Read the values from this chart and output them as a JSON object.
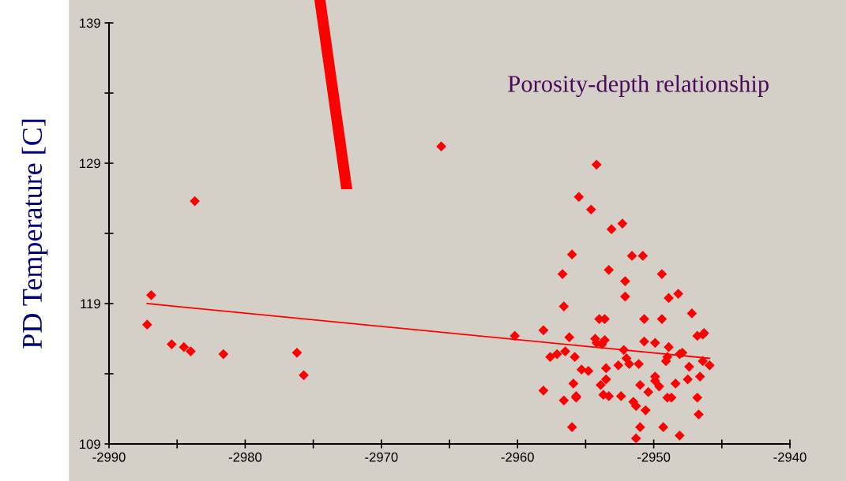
{
  "chart_data": {
    "type": "scatter",
    "ylabel": "PD Temperature [C]",
    "annotations": [
      "Porosity-depth relationship"
    ],
    "xlim": [
      -2990,
      -2940
    ],
    "ylim": [
      109,
      139
    ],
    "xticks": [
      -2990,
      {
        "value": -2985,
        "label": null
      },
      -2980,
      {
        "value": -2975,
        "label": null
      },
      -2970,
      {
        "value": -2965,
        "label": null
      },
      -2960,
      {
        "value": -2955,
        "label": null
      },
      -2950,
      {
        "value": -2945,
        "label": null
      },
      -2940
    ],
    "yticks": [
      109,
      {
        "value": 114,
        "label": null
      },
      119,
      {
        "value": 124,
        "label": null
      },
      129,
      {
        "value": 134,
        "label": null
      },
      139
    ],
    "grid": false,
    "marker": "diamond",
    "series": [
      {
        "type": "scatter",
        "color": "#ff0000",
        "x": [
          -2987.2,
          -2986.9,
          -2985.4,
          -2984.5,
          -2984.0,
          -2981.6,
          -2976.2,
          -2975.7,
          -2983.7,
          -2965.6,
          -2960.2,
          -2958.1,
          -2958.1,
          -2957.6,
          -2957.1,
          -2956.7,
          -2956.6,
          -2956.6,
          -2956.5,
          -2956.2,
          -2956.0,
          -2956.0,
          -2955.9,
          -2955.8,
          -2955.7,
          -2955.7,
          -2955.5,
          -2955.3,
          -2954.8,
          -2954.6,
          -2954.3,
          -2954.2,
          -2954.2,
          -2954.0,
          -2953.9,
          -2953.8,
          -2953.7,
          -2953.6,
          -2953.6,
          -2953.5,
          -2953.5,
          -2953.3,
          -2953.3,
          -2953.1,
          -2952.6,
          -2952.4,
          -2952.3,
          -2952.2,
          -2952.1,
          -2952.1,
          -2952.0,
          -2951.8,
          -2951.6,
          -2951.5,
          -2951.3,
          -2951.1,
          -2951.0,
          -2951.0,
          -2950.8,
          -2950.7,
          -2950.7,
          -2950.6,
          -2950.4,
          -2949.9,
          -2949.9,
          -2949.9,
          -2949.6,
          -2949.4,
          -2949.4,
          -2949.3,
          -2949.1,
          -2949.0,
          -2949.0,
          -2948.9,
          -2948.9,
          -2948.7,
          -2948.4,
          -2948.2,
          -2948.1,
          -2948.1,
          -2947.9,
          -2947.5,
          -2947.4,
          -2947.2,
          -2946.8,
          -2946.8,
          -2946.7,
          -2946.6,
          -2946.4,
          -2946.4,
          -2946.3,
          -2945.9,
          -2951.3
        ],
        "values": [
          117.5,
          119.6,
          116.1,
          115.9,
          115.6,
          115.4,
          115.5,
          113.9,
          126.3,
          130.2,
          116.7,
          117.1,
          112.8,
          115.2,
          115.4,
          121.1,
          118.8,
          112.1,
          115.6,
          116.6,
          122.5,
          110.2,
          113.3,
          115.2,
          112.4,
          112.3,
          126.6,
          114.3,
          114.2,
          125.7,
          116.5,
          128.9,
          116.2,
          117.9,
          113.2,
          116.1,
          112.5,
          117.9,
          116.4,
          114.4,
          113.6,
          121.4,
          112.4,
          124.3,
          114.6,
          112.4,
          124.7,
          115.7,
          119.5,
          120.6,
          115.1,
          114.7,
          122.4,
          112.0,
          111.7,
          114.7,
          110.2,
          113.2,
          122.4,
          117.9,
          116.3,
          111.4,
          112.7,
          116.2,
          113.8,
          113.5,
          113.1,
          121.1,
          117.9,
          110.2,
          114.9,
          112.3,
          115.2,
          119.4,
          115.9,
          112.3,
          113.3,
          119.7,
          115.4,
          109.6,
          115.5,
          113.6,
          114.5,
          118.3,
          112.3,
          116.7,
          111.1,
          113.8,
          114.9,
          116.8,
          116.9,
          114.6,
          109.4
        ]
      },
      {
        "type": "line",
        "color": "#ff0000",
        "marker": "none",
        "x": [
          -2987.2,
          -2945.9
        ],
        "values": [
          119.0,
          115.1
        ]
      }
    ]
  }
}
